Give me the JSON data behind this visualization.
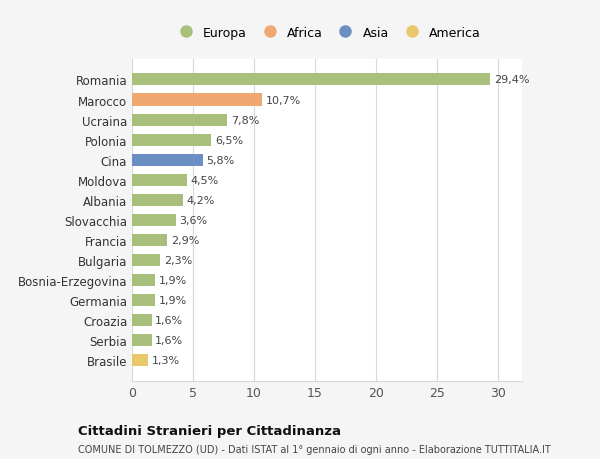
{
  "countries": [
    "Romania",
    "Marocco",
    "Ucraina",
    "Polonia",
    "Cina",
    "Moldova",
    "Albania",
    "Slovacchia",
    "Francia",
    "Bulgaria",
    "Bosnia-Erzegovina",
    "Germania",
    "Croazia",
    "Serbia",
    "Brasile"
  ],
  "values": [
    29.4,
    10.7,
    7.8,
    6.5,
    5.8,
    4.5,
    4.2,
    3.6,
    2.9,
    2.3,
    1.9,
    1.9,
    1.6,
    1.6,
    1.3
  ],
  "labels": [
    "29,4%",
    "10,7%",
    "7,8%",
    "6,5%",
    "5,8%",
    "4,5%",
    "4,2%",
    "3,6%",
    "2,9%",
    "2,3%",
    "1,9%",
    "1,9%",
    "1,6%",
    "1,6%",
    "1,3%"
  ],
  "colors": [
    "#a8c07c",
    "#f0a870",
    "#a8c07c",
    "#a8c07c",
    "#6b8fc2",
    "#a8c07c",
    "#a8c07c",
    "#a8c07c",
    "#a8c07c",
    "#a8c07c",
    "#a8c07c",
    "#a8c07c",
    "#a8c07c",
    "#a8c07c",
    "#e8c86a"
  ],
  "legend_labels": [
    "Europa",
    "Africa",
    "Asia",
    "America"
  ],
  "legend_colors": [
    "#a8c07c",
    "#f0a870",
    "#6b8fc2",
    "#e8c86a"
  ],
  "title": "Cittadini Stranieri per Cittadinanza",
  "subtitle": "COMUNE DI TOLMEZZO (UD) - Dati ISTAT al 1° gennaio di ogni anno - Elaborazione TUTTITALIA.IT",
  "xlim": [
    0,
    32
  ],
  "xticks": [
    0,
    5,
    10,
    15,
    20,
    25,
    30
  ],
  "background_color": "#f5f5f5",
  "bar_area_color": "#ffffff",
  "grid_color": "#d8d8d8",
  "label_fontsize": 8,
  "ytick_fontsize": 8.5,
  "xtick_fontsize": 9
}
